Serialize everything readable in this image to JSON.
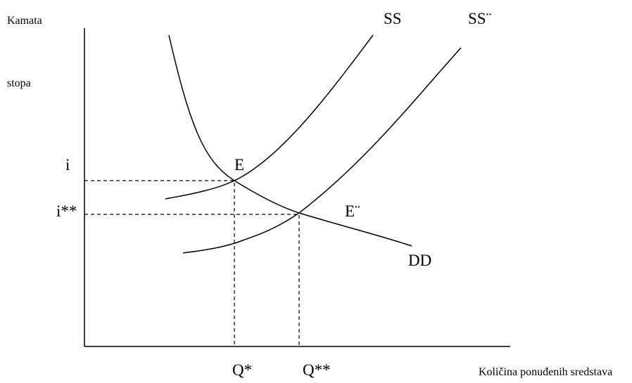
{
  "y_axis_label": {
    "line1": "Kamata",
    "line2": "stopa"
  },
  "x_axis_label": "Količina ponuđenih sredstava",
  "curves": {
    "supply": "SS",
    "supply_shifted": "SS¨",
    "demand": "DD"
  },
  "points": {
    "equilibrium": "E",
    "equilibrium_shifted": "E¨"
  },
  "y_levels": {
    "rate": "i",
    "rate_shifted": "i**"
  },
  "x_levels": {
    "quantity": "Q*",
    "quantity_shifted": "Q**"
  }
}
